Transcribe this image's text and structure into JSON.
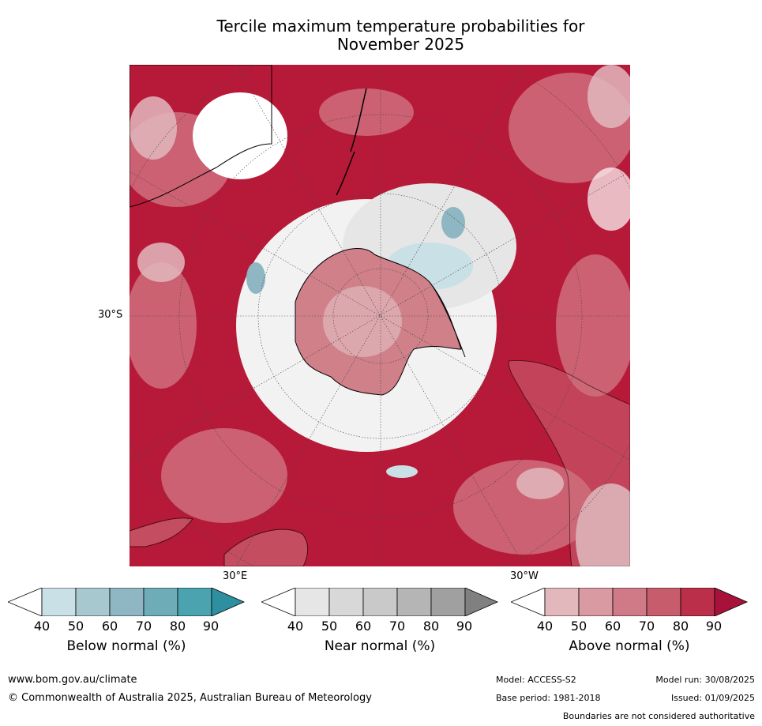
{
  "title_line1": "Tercile maximum temperature probabilities for",
  "title_line2": "November 2025",
  "map": {
    "lat_tick": "30°S",
    "lon_tick_left": "30°E",
    "lon_tick_right": "30°W",
    "colors": {
      "above_low": "#e2b8bd",
      "above_mid": "#cf6f7c",
      "above_high": "#b71a38",
      "near": "#e6e6e6",
      "below_low": "#c8e0e6",
      "below_high": "#8fb6c3"
    }
  },
  "colorbars": [
    {
      "label": "Below normal (%)",
      "ticks": [
        "40",
        "50",
        "60",
        "70",
        "80",
        "90"
      ],
      "colors": [
        "#c8e0e6",
        "#a8c8cf",
        "#8fb6c3",
        "#6eadb7",
        "#4ba3b0",
        "#2e8fa1"
      ]
    },
    {
      "label": "Near normal (%)",
      "ticks": [
        "40",
        "50",
        "60",
        "70",
        "80",
        "90"
      ],
      "colors": [
        "#e6e6e6",
        "#d8d8d8",
        "#c9c9c9",
        "#b5b5b5",
        "#a0a0a0",
        "#808080"
      ]
    },
    {
      "label": "Above normal (%)",
      "ticks": [
        "40",
        "50",
        "60",
        "70",
        "80",
        "90"
      ],
      "colors": [
        "#e2b8bd",
        "#d99aa2",
        "#cf7a86",
        "#c65c6c",
        "#bb2f4a",
        "#a8123a"
      ]
    }
  ],
  "footer": {
    "url": "www.bom.gov.au/climate",
    "copyright": "© Commonwealth of Australia 2025, Australian Bureau of Meteorology",
    "model": "Model: ACCESS-S2",
    "base_period": "Base period: 1981-2018",
    "model_run": "Model run: 30/08/2025",
    "issued": "Issued: 01/09/2025",
    "disclaimer": "Boundaries are not considered authoritative"
  }
}
